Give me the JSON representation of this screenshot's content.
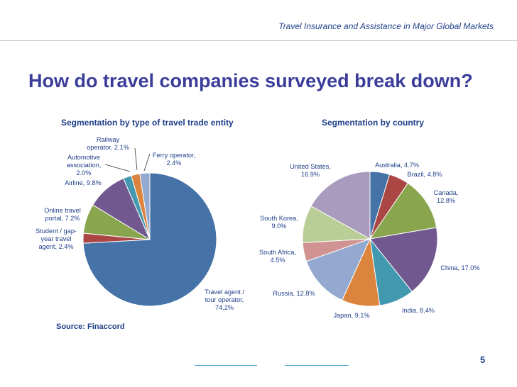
{
  "header": {
    "title": "Travel Insurance and Assistance in Major Global Markets"
  },
  "page_title": "How do travel companies surveyed break down?",
  "source": "Source: Finaccord",
  "page_number": "5",
  "chart_data": [
    {
      "type": "pie",
      "title": "Segmentation by type of travel trade entity",
      "slices": [
        {
          "label": [
            "Travel agent /",
            "tour operator,",
            "74.2%"
          ],
          "name": "Travel agent / tour operator",
          "value": 74.2,
          "color": "#4572a7"
        },
        {
          "label": [
            "Student / gap-",
            "year travel",
            "agent, 2.4%"
          ],
          "name": "Student / gap-year travel agent",
          "value": 2.4,
          "color": "#aa4643"
        },
        {
          "label": [
            "Online travel",
            "portal, 7.2%"
          ],
          "name": "Online travel portal",
          "value": 7.2,
          "color": "#89a54e"
        },
        {
          "label": [
            "Airline, 9.8%"
          ],
          "name": "Airline",
          "value": 9.8,
          "color": "#71588f"
        },
        {
          "label": [
            "Automotive",
            "association,",
            "2.0%"
          ],
          "name": "Automotive association",
          "value": 2.0,
          "color": "#4198af"
        },
        {
          "label": [
            "Railway",
            "operator, 2.1%"
          ],
          "name": "Railway operator",
          "value": 2.1,
          "color": "#db843d"
        },
        {
          "label": [
            "Ferry operator,",
            "2.4%"
          ],
          "name": "Ferry operator",
          "value": 2.4,
          "color": "#93a9cf"
        }
      ]
    },
    {
      "type": "pie",
      "title": "Segmentation by country",
      "slices": [
        {
          "label": [
            "Australia, 4.7%"
          ],
          "name": "Australia",
          "value": 4.7,
          "color": "#4572a7"
        },
        {
          "label": [
            "Brazil, 4.8%"
          ],
          "name": "Brazil",
          "value": 4.8,
          "color": "#aa4643"
        },
        {
          "label": [
            "Canada,",
            "12.8%"
          ],
          "name": "Canada",
          "value": 12.8,
          "color": "#89a54e"
        },
        {
          "label": [
            "China, 17.0%"
          ],
          "name": "China",
          "value": 17.0,
          "color": "#71588f"
        },
        {
          "label": [
            "India, 8.4%"
          ],
          "name": "India",
          "value": 8.4,
          "color": "#4198af"
        },
        {
          "label": [
            "Japan, 9.1%"
          ],
          "name": "Japan",
          "value": 9.1,
          "color": "#db843d"
        },
        {
          "label": [
            "Russia, 12.8%"
          ],
          "name": "Russia",
          "value": 12.8,
          "color": "#93a9cf"
        },
        {
          "label": [
            "South Africa,",
            "4.5%"
          ],
          "name": "South Africa",
          "value": 4.5,
          "color": "#d19392"
        },
        {
          "label": [
            "South Korea,",
            "9.0%"
          ],
          "name": "South Korea",
          "value": 9.0,
          "color": "#b9cd96"
        },
        {
          "label": [
            "United States,",
            "16.9%"
          ],
          "name": "United States",
          "value": 16.9,
          "color": "#a99bbd"
        }
      ]
    }
  ]
}
